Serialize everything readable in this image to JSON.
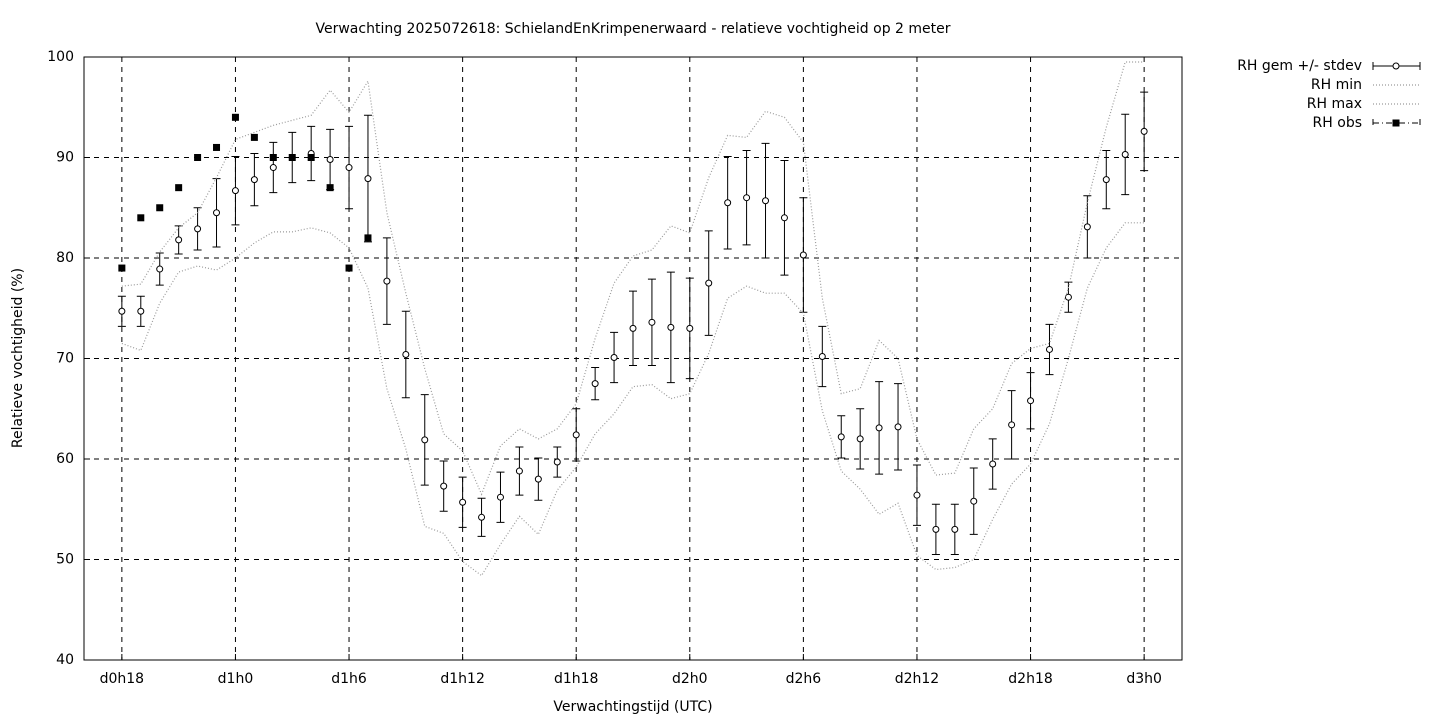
{
  "chart_data": {
    "type": "errorbar",
    "title": "Verwachting 2025072618: SchielandEnKrimpenerwaard - relatieve vochtigheid op 2 meter",
    "xlabel": "Verwachtingstijd (UTC)",
    "ylabel": "Relatieve vochtigheid (%)",
    "x": [
      18,
      19,
      20,
      21,
      22,
      23,
      24,
      25,
      26,
      27,
      28,
      29,
      30,
      31,
      32,
      33,
      34,
      35,
      36,
      37,
      38,
      39,
      40,
      41,
      42,
      43,
      44,
      45,
      46,
      47,
      48,
      49,
      50,
      51,
      52,
      53,
      54,
      55,
      56,
      57,
      58,
      59,
      60,
      61,
      62,
      63,
      64,
      65,
      66,
      67,
      68,
      69,
      70,
      71,
      72
    ],
    "series": [
      {
        "name": "RH gem +/- stdev",
        "color": "#000000",
        "style": "errorbars",
        "values": [
          74.7,
          74.7,
          78.9,
          81.8,
          82.9,
          84.5,
          86.7,
          87.8,
          89.0,
          90.0,
          90.4,
          89.8,
          89.0,
          87.9,
          77.7,
          70.4,
          61.9,
          57.3,
          55.7,
          54.2,
          56.2,
          58.8,
          58.0,
          59.7,
          62.4,
          67.5,
          70.1,
          73.0,
          73.6,
          73.1,
          73.0,
          77.5,
          85.5,
          86.0,
          85.7,
          84.0,
          80.3,
          70.2,
          62.2,
          62.0,
          63.1,
          63.2,
          56.4,
          53.0,
          53.0,
          55.8,
          59.5,
          63.4,
          65.8,
          70.9,
          76.1,
          83.1,
          87.8,
          90.3,
          92.6
        ],
        "errors": [
          1.5,
          1.5,
          1.6,
          1.4,
          2.1,
          3.4,
          3.4,
          2.6,
          2.5,
          2.5,
          2.7,
          3.0,
          4.1,
          6.3,
          4.3,
          4.3,
          4.5,
          2.5,
          2.5,
          1.9,
          2.5,
          2.4,
          2.1,
          1.5,
          2.6,
          1.6,
          2.5,
          3.7,
          4.3,
          5.5,
          5.0,
          5.2,
          4.6,
          4.7,
          5.7,
          5.7,
          5.7,
          3.0,
          2.1,
          3.0,
          4.6,
          4.3,
          3.0,
          2.5,
          2.5,
          3.3,
          2.5,
          3.4,
          2.8,
          2.5,
          1.5,
          3.1,
          2.9,
          4.0,
          3.9
        ]
      },
      {
        "name": "RH min",
        "color": "#9a9a9a",
        "style": "dotted",
        "values": [
          71.5,
          70.8,
          75.5,
          78.6,
          79.2,
          78.8,
          80.0,
          81.5,
          82.6,
          82.6,
          83.0,
          82.5,
          81.0,
          77.0,
          67.0,
          61.0,
          53.3,
          52.6,
          49.8,
          48.4,
          51.5,
          54.3,
          52.5,
          56.9,
          59.2,
          62.5,
          64.5,
          67.2,
          67.4,
          66.0,
          66.5,
          70.5,
          76.0,
          77.2,
          76.5,
          76.5,
          74.5,
          64.8,
          58.8,
          57.0,
          54.5,
          55.6,
          50.4,
          49.0,
          49.2,
          50.0,
          54.0,
          57.5,
          59.5,
          63.5,
          70.0,
          77.0,
          81.0,
          83.5,
          83.5
        ]
      },
      {
        "name": "RH max",
        "color": "#9a9a9a",
        "style": "dotted",
        "values": [
          77.2,
          77.4,
          80.6,
          83.0,
          84.5,
          88.0,
          91.8,
          92.5,
          93.2,
          93.7,
          94.2,
          96.7,
          94.5,
          97.6,
          84.5,
          76.5,
          69.0,
          62.5,
          60.8,
          56.5,
          61.3,
          63.0,
          62.0,
          63.0,
          65.5,
          72.0,
          77.5,
          80.2,
          80.8,
          83.2,
          82.5,
          88.0,
          92.2,
          92.0,
          94.6,
          94.0,
          91.5,
          76.0,
          66.5,
          67.0,
          71.8,
          70.0,
          62.0,
          58.4,
          58.6,
          63.0,
          65.0,
          69.5,
          71.0,
          71.5,
          77.0,
          85.5,
          93.0,
          99.5,
          99.5
        ]
      },
      {
        "name": "RH obs",
        "color": "#000000",
        "style": "points",
        "values": [
          79,
          84,
          85,
          87,
          90,
          91,
          94,
          92,
          90,
          90,
          90,
          87,
          79,
          82,
          null,
          null,
          null,
          null,
          null,
          null,
          null,
          null,
          null,
          null,
          null,
          null,
          null,
          null,
          null,
          null,
          null,
          null,
          null,
          null,
          null,
          null,
          null,
          null,
          null,
          null,
          null,
          null,
          null,
          null,
          null,
          null,
          null,
          null,
          null,
          null,
          null,
          null,
          null,
          null,
          null
        ]
      }
    ],
    "xlim": [
      16,
      74
    ],
    "xticks": [
      {
        "value": 18,
        "label": "d0h18"
      },
      {
        "value": 24,
        "label": "d1h0"
      },
      {
        "value": 30,
        "label": "d1h6"
      },
      {
        "value": 36,
        "label": "d1h12"
      },
      {
        "value": 42,
        "label": "d1h18"
      },
      {
        "value": 48,
        "label": "d2h0"
      },
      {
        "value": 54,
        "label": "d2h6"
      },
      {
        "value": 60,
        "label": "d2h12"
      },
      {
        "value": 66,
        "label": "d2h18"
      },
      {
        "value": 72,
        "label": "d3h0"
      }
    ],
    "ylim": [
      40,
      100
    ],
    "yticks": [
      40,
      50,
      60,
      70,
      80,
      90,
      100
    ],
    "grid": true
  }
}
